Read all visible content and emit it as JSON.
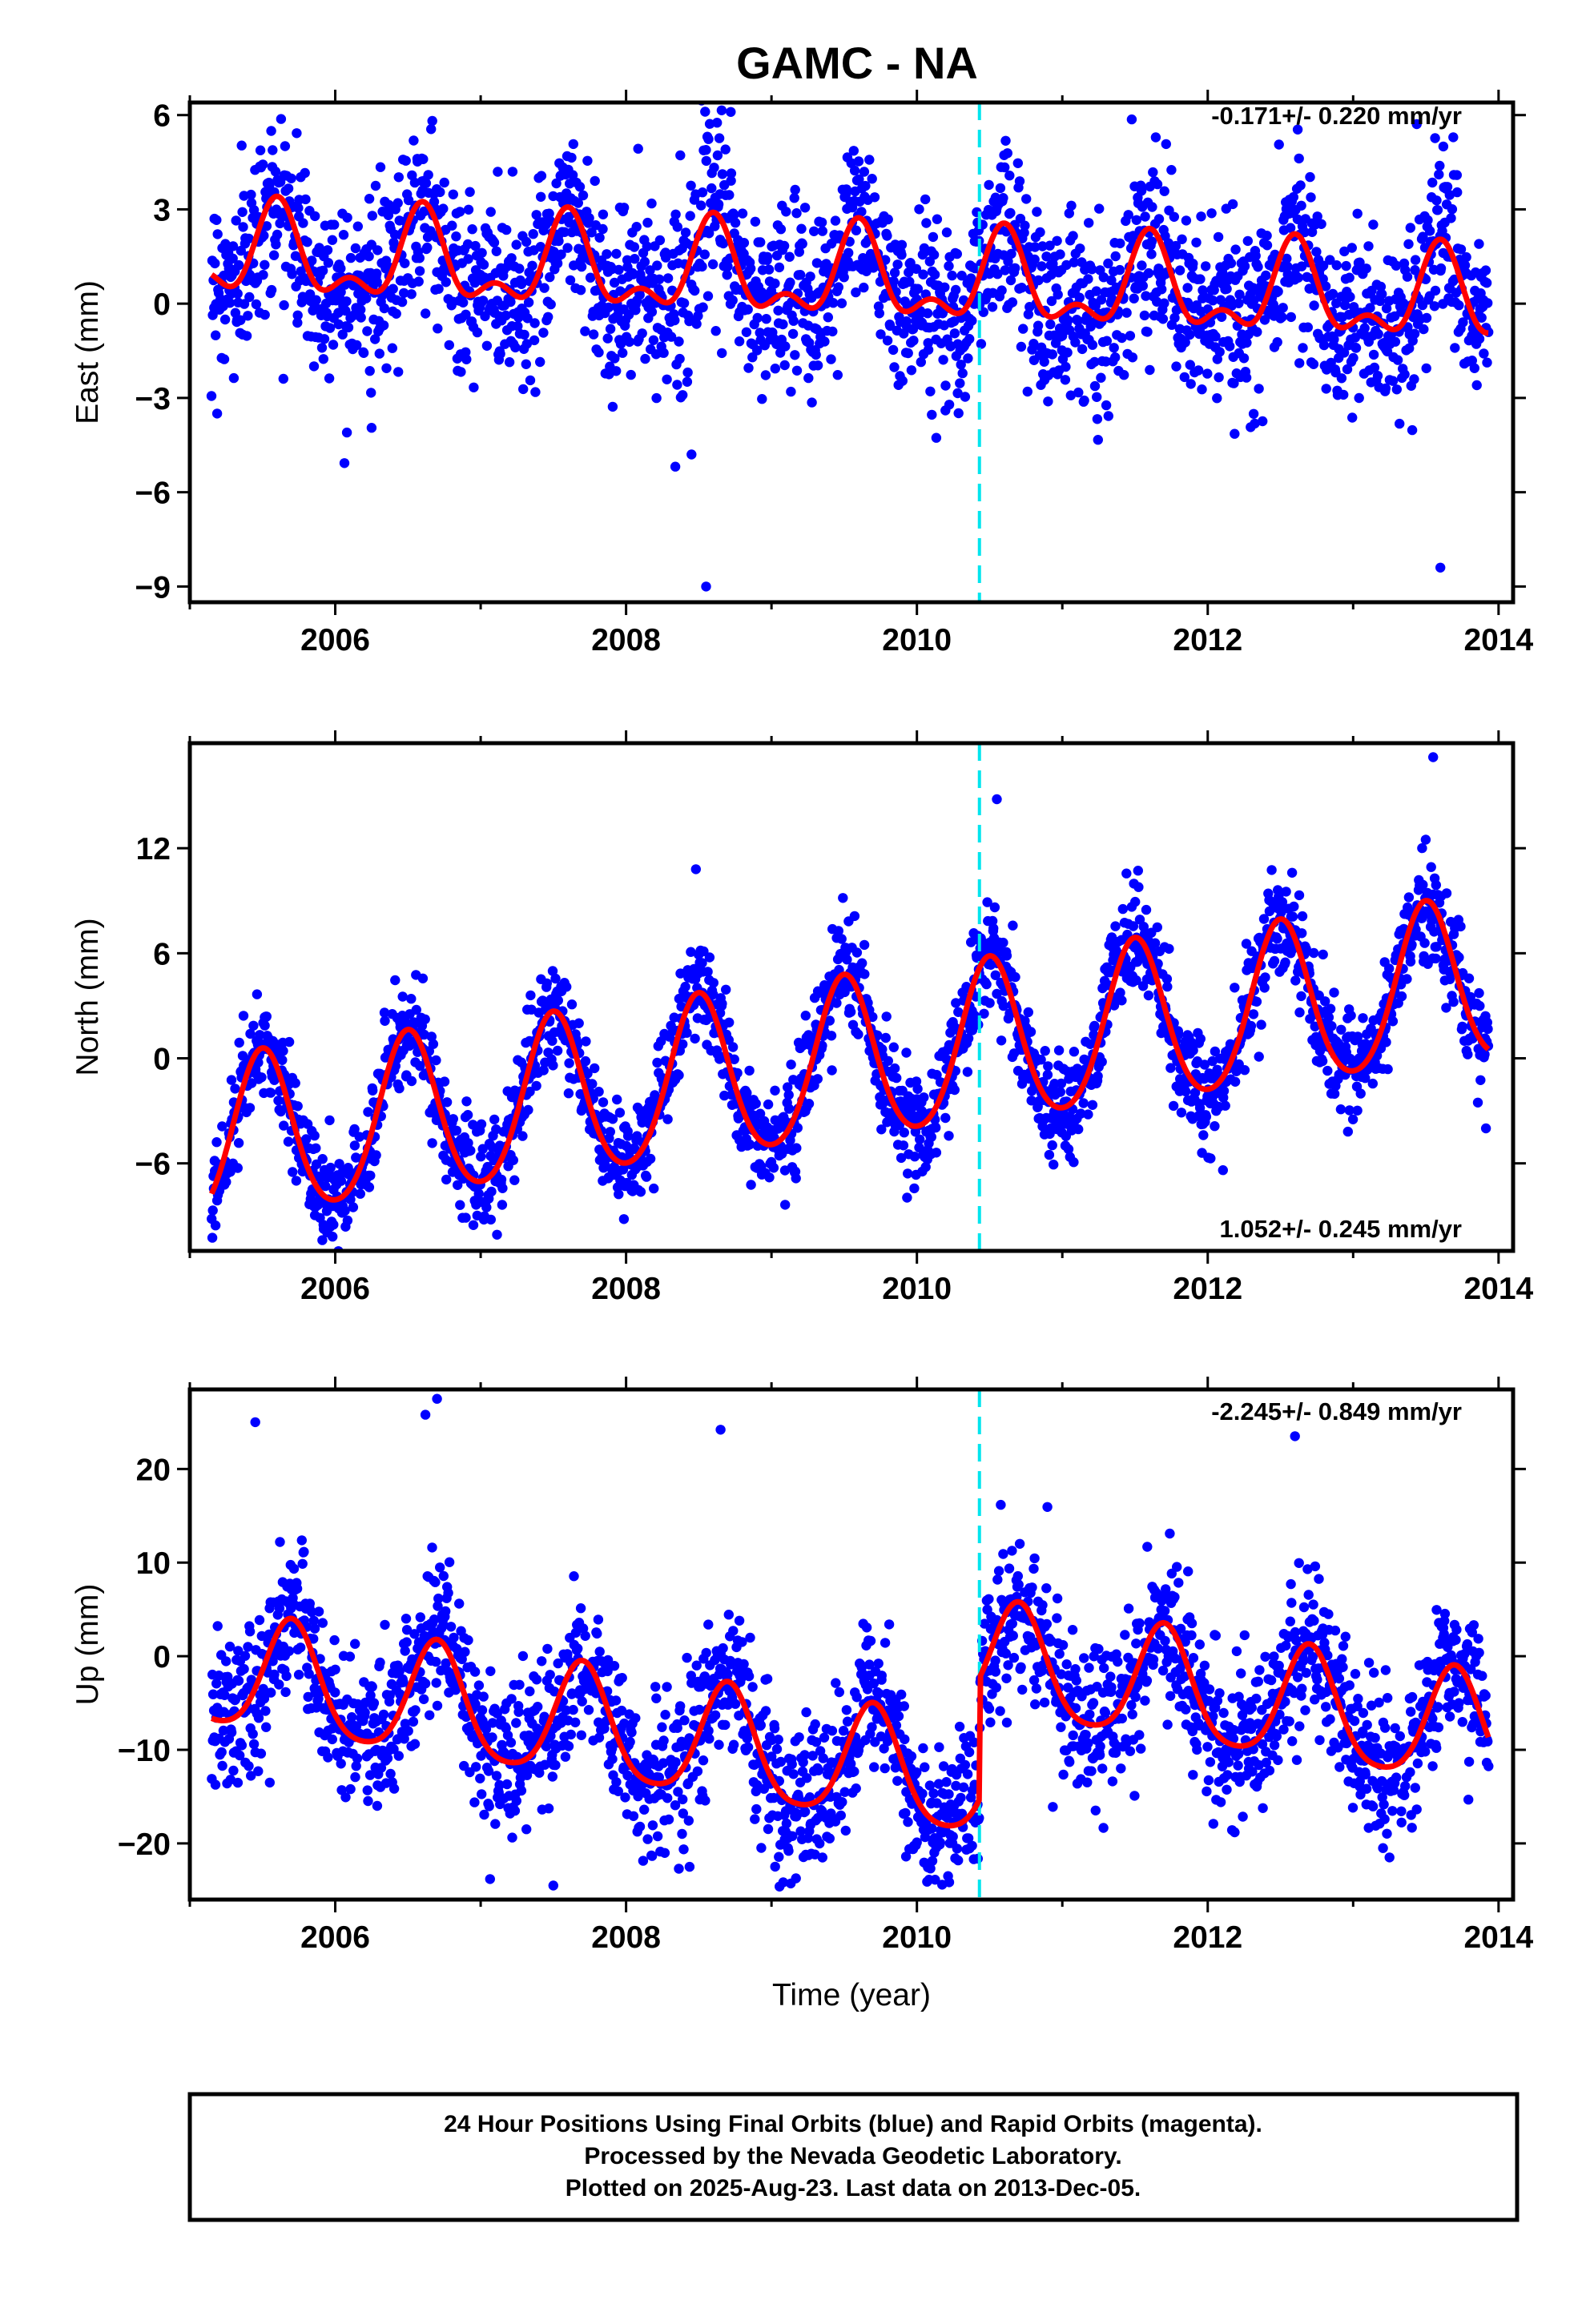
{
  "title": "GAMC - NA",
  "footer": {
    "line1": "24 Hour Positions Using Final Orbits (blue) and Rapid Orbits (magenta).",
    "line2": "Processed by the Nevada Geodetic Laboratory.",
    "line3": "Plotted on 2025-Aug-23. Last data on 2013-Dec-05."
  },
  "chart_data": [
    {
      "type": "scatter",
      "component": "East",
      "ylabel": "East (mm)",
      "xlabel": "",
      "rate_label": "-0.171+/- 0.220 mm/yr",
      "xlim": [
        2005.0,
        2014.1
      ],
      "ylim": [
        -9.5,
        6.4
      ],
      "xticks": [
        2006,
        2008,
        2010,
        2012,
        2014
      ],
      "yticks": [
        -9,
        -6,
        -3,
        0,
        3,
        6
      ],
      "ytick_labels": [
        "−9",
        "−6",
        "−3",
        "0",
        "3",
        "6"
      ],
      "grid": false,
      "colors": {
        "points": "#0000ff",
        "model": "#ff0000",
        "event_line": "#00e5ee"
      },
      "event_line_year": 2010.43,
      "time_span": [
        2005.15,
        2013.93
      ],
      "model": {
        "offset": 0.8,
        "rate": -0.171,
        "t0": 2009.5,
        "annual_amp": 1.25,
        "annual_phase_year": 2005.6,
        "semiannual_amp": 0.7,
        "semiannual_phase_year": 2005.6,
        "step_year": 2010.43,
        "step_size": 0.0
      },
      "scatter_sd": 1.4,
      "point_count": 2300,
      "outliers": [
        [
          2006.08,
          -4.1
        ],
        [
          2006.25,
          -3.95
        ],
        [
          2008.45,
          -4.8
        ],
        [
          2008.55,
          -9.0
        ],
        [
          2008.72,
          6.1
        ],
        [
          2013.6,
          -8.4
        ],
        [
          2013.62,
          5.0
        ]
      ]
    },
    {
      "type": "scatter",
      "component": "North",
      "ylabel": "North (mm)",
      "xlabel": "",
      "rate_label": "1.052+/- 0.245 mm/yr",
      "xlim": [
        2005.0,
        2014.1
      ],
      "ylim": [
        -11,
        18
      ],
      "xticks": [
        2006,
        2008,
        2010,
        2012,
        2014
      ],
      "yticks": [
        -6,
        0,
        6,
        12
      ],
      "ytick_labels": [
        "−6",
        "0",
        "6",
        "12"
      ],
      "grid": false,
      "colors": {
        "points": "#0000ff",
        "model": "#ff0000",
        "event_line": "#00e5ee"
      },
      "event_line_year": 2010.43,
      "time_span": [
        2005.15,
        2013.93
      ],
      "model": {
        "offset": -0.3,
        "rate": 1.052,
        "t0": 2009.5,
        "annual_amp": 4.6,
        "annual_phase_year": 2005.5,
        "semiannual_amp": 0.5,
        "semiannual_phase_year": 2005.5,
        "step_year": 2010.43,
        "step_size": 0.0
      },
      "scatter_sd": 1.5,
      "point_count": 2300,
      "outliers": [
        [
          2010.55,
          14.8
        ],
        [
          2008.48,
          10.8
        ],
        [
          2013.55,
          17.2
        ],
        [
          2012.58,
          10.6
        ]
      ]
    },
    {
      "type": "scatter",
      "component": "Up",
      "ylabel": "Up (mm)",
      "xlabel": "Time (year)",
      "rate_label": "-2.245+/- 0.849 mm/yr",
      "xlim": [
        2005.0,
        2014.1
      ],
      "ylim": [
        -26,
        28.5
      ],
      "xticks": [
        2006,
        2008,
        2010,
        2012,
        2014
      ],
      "yticks": [
        -20,
        -10,
        0,
        10,
        20
      ],
      "ytick_labels": [
        "−20",
        "−10",
        "0",
        "10",
        "20"
      ],
      "grid": false,
      "colors": {
        "points": "#0000ff",
        "model": "#ff0000",
        "event_line": "#00e5ee"
      },
      "event_line_year": 2010.43,
      "time_span": [
        2005.15,
        2013.93
      ],
      "model": {
        "offset": -5.0,
        "rate": -2.245,
        "t0": 2009.5,
        "annual_amp": 6.0,
        "annual_phase_year": 2005.7,
        "semiannual_amp": 1.0,
        "semiannual_phase_year": 2005.7,
        "step_year": 2010.43,
        "step_size": 13.0
      },
      "scatter_sd": 4.0,
      "point_count": 2300,
      "outliers": [
        [
          2005.45,
          25.0
        ],
        [
          2006.62,
          25.8
        ],
        [
          2006.7,
          27.5
        ],
        [
          2007.5,
          -24.5
        ],
        [
          2008.65,
          24.2
        ],
        [
          2012.6,
          23.5
        ],
        [
          2005.55,
          -13.5
        ],
        [
          2013.25,
          -21.5
        ]
      ]
    }
  ]
}
